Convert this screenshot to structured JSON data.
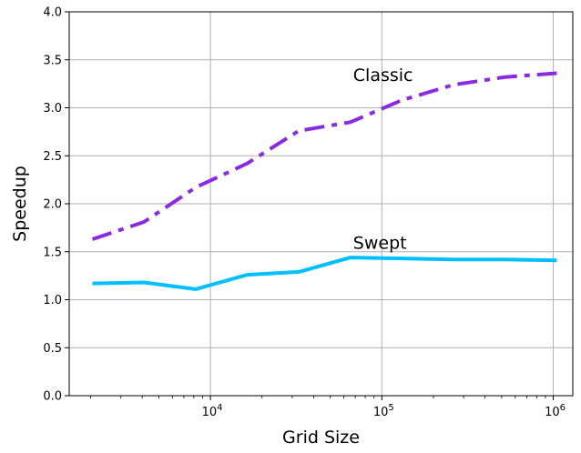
{
  "chart_data": {
    "type": "line",
    "title": "",
    "xlabel": "Grid Size",
    "ylabel": "Speedup",
    "x_scale": "log",
    "xlim": [
      1500,
      1300000
    ],
    "ylim": [
      0,
      4
    ],
    "grid": true,
    "legend": "none",
    "x_ticks": [
      {
        "value": 10000,
        "base": "10",
        "exp": "4"
      },
      {
        "value": 100000,
        "base": "10",
        "exp": "5"
      },
      {
        "value": 1000000,
        "base": "10",
        "exp": "6"
      }
    ],
    "y_ticks": [
      {
        "value": 0.0,
        "label": "0.0"
      },
      {
        "value": 0.5,
        "label": "0.5"
      },
      {
        "value": 1.0,
        "label": "1.0"
      },
      {
        "value": 1.5,
        "label": "1.5"
      },
      {
        "value": 2.0,
        "label": "2.0"
      },
      {
        "value": 2.5,
        "label": "2.5"
      },
      {
        "value": 3.0,
        "label": "3.0"
      },
      {
        "value": 3.5,
        "label": "3.5"
      },
      {
        "value": 4.0,
        "label": "4.0"
      }
    ],
    "x": [
      2048,
      4096,
      8192,
      16384,
      32768,
      65536,
      131072,
      262144,
      524288,
      1048576
    ],
    "series": [
      {
        "name": "Classic",
        "color": "#8a2be2",
        "style": "dashdot",
        "values": [
          1.63,
          1.81,
          2.17,
          2.42,
          2.76,
          2.85,
          3.08,
          3.24,
          3.32,
          3.36
        ],
        "label_at": {
          "x": 68000,
          "y": 3.28
        }
      },
      {
        "name": "Swept",
        "color": "#00bfff",
        "style": "solid",
        "values": [
          1.17,
          1.18,
          1.11,
          1.26,
          1.29,
          1.44,
          1.43,
          1.42,
          1.42,
          1.41
        ],
        "label_at": {
          "x": 68000,
          "y": 1.53
        }
      }
    ]
  }
}
